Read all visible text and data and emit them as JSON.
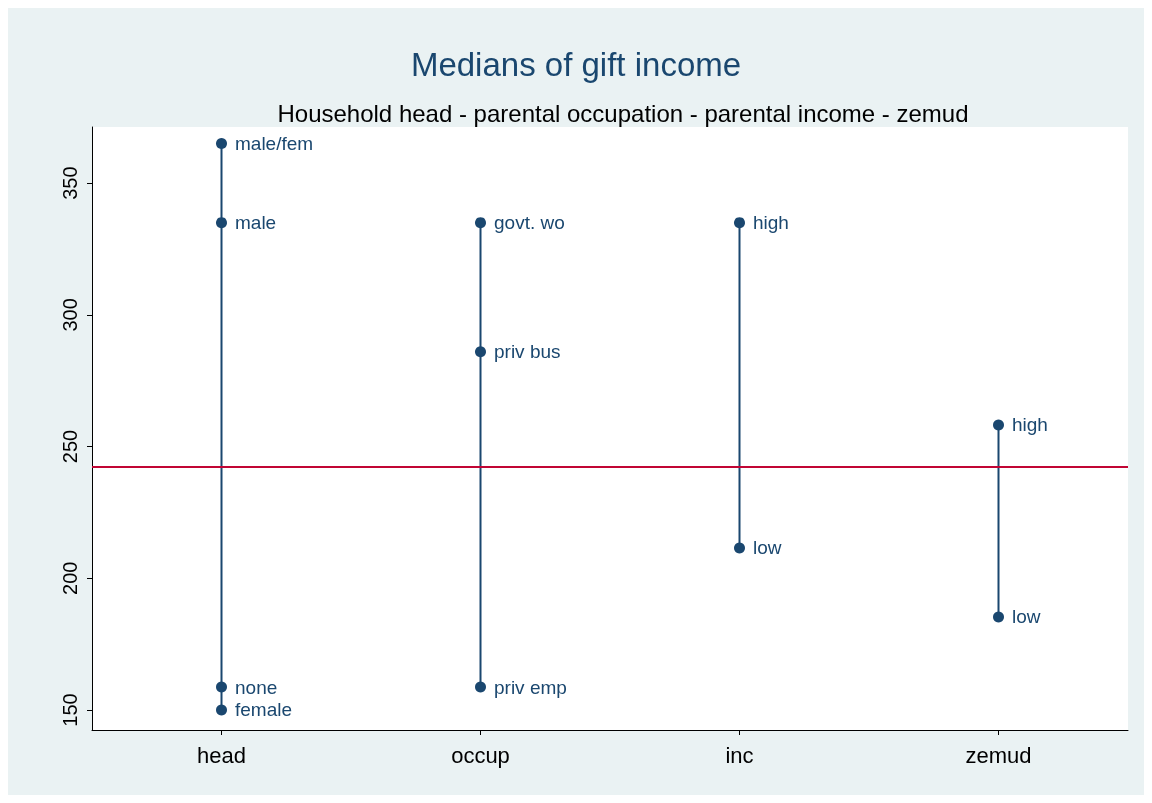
{
  "chart_data": {
    "type": "line",
    "title": "Medians of gift income",
    "subtitle": "Household head - parental occupation - parental income - zemud",
    "categories": [
      "head",
      "occup",
      "inc",
      "zemud"
    ],
    "series": [
      {
        "color": "#1a476f",
        "x": [
          "head",
          "head",
          "head",
          "head"
        ],
        "values": [
          365,
          335,
          158.7,
          150
        ],
        "value_labels": [
          "male/fem",
          "male",
          "none",
          "female"
        ]
      },
      {
        "color": "#1a476f",
        "x": [
          "occup",
          "occup",
          "occup"
        ],
        "values": [
          335,
          286,
          158.7
        ],
        "value_labels": [
          "govt. wo",
          "priv bus",
          "priv emp"
        ]
      },
      {
        "color": "#1a476f",
        "x": [
          "inc",
          "inc"
        ],
        "values": [
          335,
          211.5
        ],
        "value_labels": [
          "high",
          "low"
        ]
      },
      {
        "color": "#1a476f",
        "x": [
          "zemud",
          "zemud"
        ],
        "values": [
          258.2,
          185.3
        ],
        "value_labels": [
          "high",
          "low"
        ]
      }
    ],
    "ylim": [
      142.4,
      371.3
    ],
    "yticks": [
      150,
      200,
      250,
      300,
      350
    ],
    "ref_lines": [
      {
        "axis": "y",
        "value": 242.2,
        "color": "#c10534",
        "line_style": "solid"
      }
    ],
    "marker": "circle",
    "line_style": "solid",
    "grid": false
  }
}
